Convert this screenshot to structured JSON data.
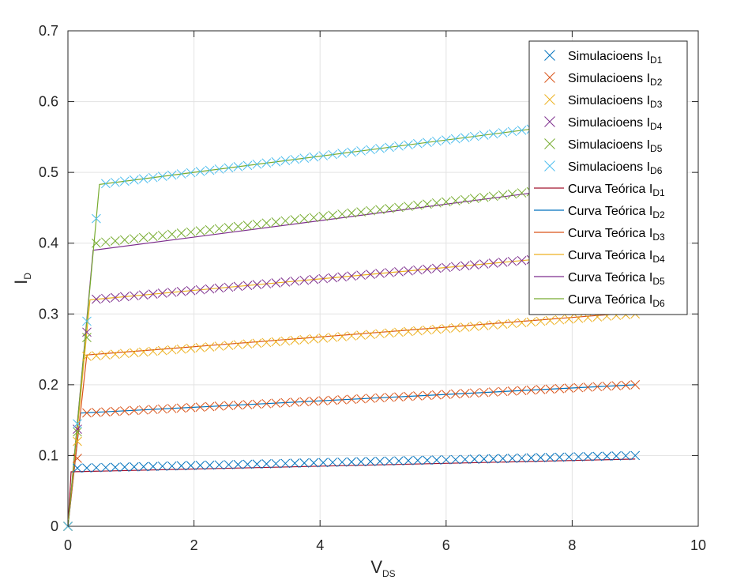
{
  "chart_data": {
    "type": "line",
    "title": "",
    "xlabel": {
      "main": "V",
      "sub": "DS"
    },
    "ylabel": {
      "main": "I",
      "sub": "D"
    },
    "xlim": [
      0,
      10
    ],
    "ylim": [
      0,
      0.7
    ],
    "xticks": [
      "0",
      "2",
      "4",
      "6",
      "8",
      "10"
    ],
    "yticks": [
      "0",
      "0.1",
      "0.2",
      "0.3",
      "0.4",
      "0.5",
      "0.6",
      "0.7"
    ],
    "grid": true,
    "legend_position": "top-right",
    "x_range_data": [
      0,
      9
    ],
    "marker_series": [
      {
        "name": "Simulacioens",
        "sub": "D1",
        "color": "#0072BD",
        "knee": [
          0.05,
          0.082
        ],
        "end": [
          9,
          0.1
        ]
      },
      {
        "name": "Simulacioens",
        "sub": "D2",
        "color": "#D95319",
        "knee": [
          0.25,
          0.16
        ],
        "end": [
          9,
          0.2
        ]
      },
      {
        "name": "Simulacioens",
        "sub": "D3",
        "color": "#EDB120",
        "knee": [
          0.3,
          0.24
        ],
        "end": [
          9,
          0.3
        ]
      },
      {
        "name": "Simulacioens",
        "sub": "D4",
        "color": "#7E2F8E",
        "knee": [
          0.35,
          0.32
        ],
        "end": [
          9,
          0.39
        ]
      },
      {
        "name": "Simulacioens",
        "sub": "D5",
        "color": "#77AC30",
        "knee": [
          0.45,
          0.4
        ],
        "end": [
          9,
          0.49
        ]
      },
      {
        "name": "Simulacioens",
        "sub": "D6",
        "color": "#4DBEEE",
        "knee": [
          0.5,
          0.483
        ],
        "end": [
          9,
          0.58
        ]
      }
    ],
    "line_series": [
      {
        "name": "Curva Teórica",
        "sub": "D1",
        "color": "#A2142F",
        "knee": [
          0.05,
          0.077
        ],
        "end": [
          9,
          0.095
        ]
      },
      {
        "name": "Curva Teórica",
        "sub": "D2",
        "color": "#0072BD",
        "knee": [
          0.2,
          0.16
        ],
        "end": [
          9,
          0.2
        ]
      },
      {
        "name": "Curva Teórica",
        "sub": "D3",
        "color": "#D95319",
        "knee": [
          0.3,
          0.242
        ],
        "end": [
          9,
          0.302
        ]
      },
      {
        "name": "Curva Teórica",
        "sub": "D4",
        "color": "#EDB120",
        "knee": [
          0.35,
          0.32
        ],
        "end": [
          9,
          0.39
        ]
      },
      {
        "name": "Curva Teórica",
        "sub": "D5",
        "color": "#7E2F8E",
        "knee": [
          0.4,
          0.39
        ],
        "end": [
          9,
          0.49
        ]
      },
      {
        "name": "Curva Teórica",
        "sub": "D6",
        "color": "#77AC30",
        "knee": [
          0.5,
          0.483
        ],
        "end": [
          9,
          0.58
        ]
      }
    ]
  }
}
